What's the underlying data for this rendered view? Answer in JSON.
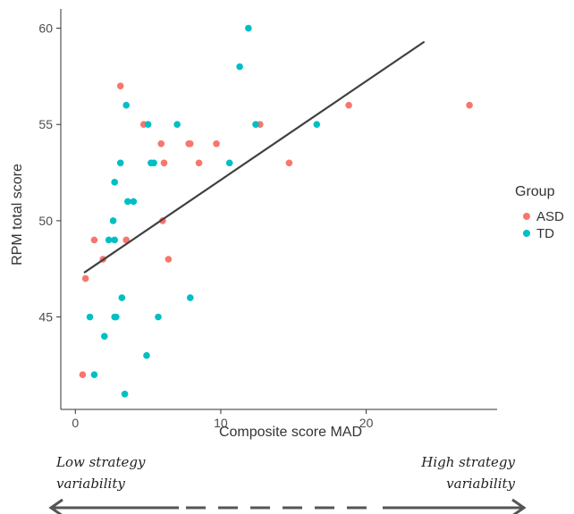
{
  "chart_data": {
    "type": "scatter",
    "xlabel": "Composite score MAD",
    "ylabel": "RPM total score",
    "xlim": [
      -1,
      29
    ],
    "ylim": [
      40.2,
      61
    ],
    "x_ticks": [
      0,
      10,
      20
    ],
    "y_ticks": [
      45,
      50,
      55,
      60
    ],
    "grid": false,
    "legend": {
      "title": "Group",
      "placement": "right"
    },
    "series": [
      {
        "name": "ASD",
        "color": "#F8766D",
        "points": [
          [
            0.5,
            42
          ],
          [
            0.7,
            47
          ],
          [
            1.3,
            49
          ],
          [
            1.9,
            48
          ],
          [
            3.1,
            57
          ],
          [
            3.5,
            49
          ],
          [
            4.7,
            55
          ],
          [
            5.9,
            54
          ],
          [
            6.0,
            50
          ],
          [
            6.1,
            53
          ],
          [
            6.4,
            48
          ],
          [
            7.8,
            54
          ],
          [
            7.9,
            54
          ],
          [
            8.5,
            53
          ],
          [
            9.7,
            54
          ],
          [
            12.7,
            55
          ],
          [
            14.7,
            53
          ],
          [
            18.8,
            56
          ],
          [
            27.1,
            56
          ]
        ]
      },
      {
        "name": "TD",
        "color": "#00BFC4",
        "points": [
          [
            1.0,
            45
          ],
          [
            1.3,
            42
          ],
          [
            2.0,
            44
          ],
          [
            2.3,
            49
          ],
          [
            2.6,
            50
          ],
          [
            2.7,
            52
          ],
          [
            2.7,
            45
          ],
          [
            2.7,
            49
          ],
          [
            2.8,
            45
          ],
          [
            3.1,
            53
          ],
          [
            3.2,
            46
          ],
          [
            3.4,
            41
          ],
          [
            3.5,
            56
          ],
          [
            3.6,
            51
          ],
          [
            4.0,
            51
          ],
          [
            4.9,
            43
          ],
          [
            5.0,
            55
          ],
          [
            5.2,
            53
          ],
          [
            5.4,
            53
          ],
          [
            5.7,
            45
          ],
          [
            7.0,
            55
          ],
          [
            7.9,
            46
          ],
          [
            10.6,
            53
          ],
          [
            11.3,
            58
          ],
          [
            11.9,
            60
          ],
          [
            12.4,
            55
          ],
          [
            16.6,
            55
          ]
        ]
      }
    ],
    "trend_line": {
      "type": "linear",
      "x": [
        0.6,
        24.0
      ],
      "y": [
        47.3,
        59.3
      ],
      "color": "#404040"
    },
    "annotations": {
      "left_line1": "Low strategy",
      "left_line2": "variability",
      "right_line1": "High strategy",
      "right_line2": "variability"
    }
  }
}
